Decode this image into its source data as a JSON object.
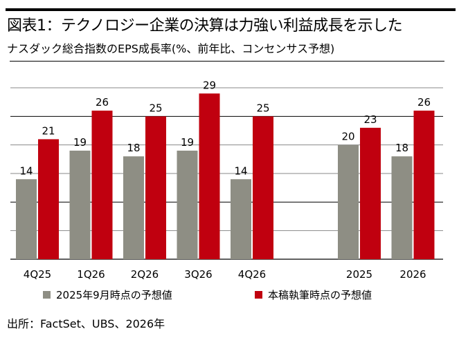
{
  "title": "図表1：テクノロジー企業の決算は力強い利益成長を示した",
  "subtitle": "ナスダック総合指数のEPS成長率(%、前年比、コンセンサス予想)",
  "source": "出所：FactSet、UBS、2026年",
  "chart_data": {
    "type": "bar",
    "title": "ナスダック総合指数のEPS成長率(%、前年比、コンセンサス予想)",
    "categories": [
      "4Q25",
      "1Q26",
      "2Q26",
      "3Q26",
      "4Q26",
      "2025",
      "2026"
    ],
    "series": [
      {
        "name": "2025年9月時点の予想値",
        "color": "#8e8e84",
        "values": [
          14,
          19,
          18,
          19,
          14,
          20,
          18
        ]
      },
      {
        "name": "本稿執筆時点の予想値",
        "color": "#c0000f",
        "values": [
          21,
          26,
          25,
          29,
          25,
          23,
          26
        ]
      }
    ],
    "ylim": [
      0,
      30
    ],
    "ytick_step": 5,
    "grid": true,
    "legend": "bottom"
  }
}
